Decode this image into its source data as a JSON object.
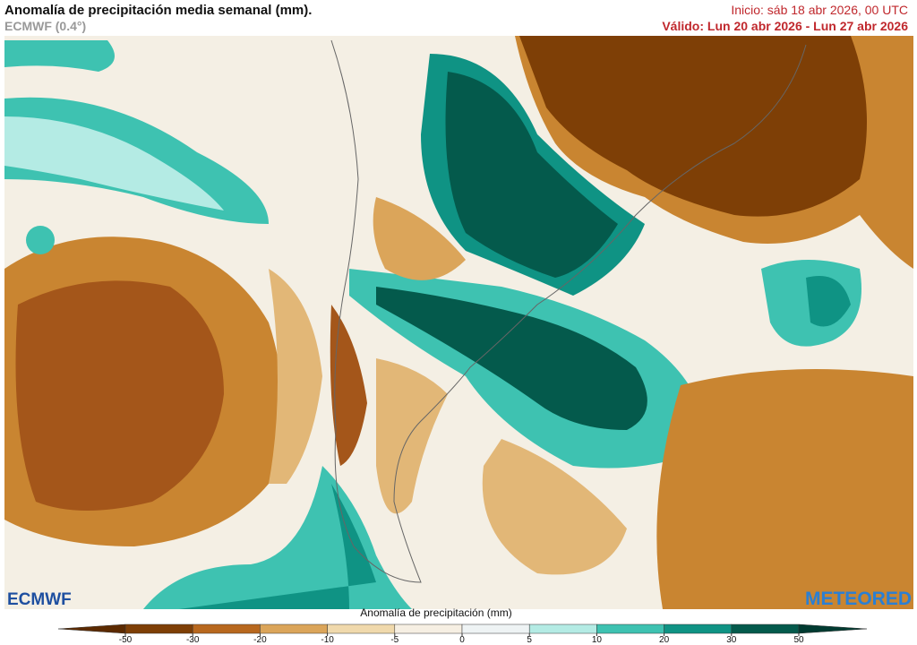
{
  "header": {
    "title": "Anomalía de precipitación media semanal (mm).",
    "model": "ECMWF (0.4°)",
    "init": "Inicio:  sáb 18 abr 2026, 00 UTC",
    "valid": "Válido: Lun 20 abr 2026 - Lun 27 abr 2026"
  },
  "logos": {
    "left": "ECMWF",
    "right": "METEORED"
  },
  "colorbar": {
    "label": "Anomalía de precipitación (mm)",
    "ticks": [
      -50,
      -30,
      -20,
      -10,
      -5,
      0,
      5,
      10,
      20,
      30,
      50
    ],
    "colors": [
      "#5c2a00",
      "#7e3f06",
      "#b8681e",
      "#dba55a",
      "#f0d9ac",
      "#f6efe3",
      "#eef3f4",
      "#b4ebe4",
      "#3ec2b1",
      "#0f9384",
      "#045a4c",
      "#003b31"
    ]
  }
}
